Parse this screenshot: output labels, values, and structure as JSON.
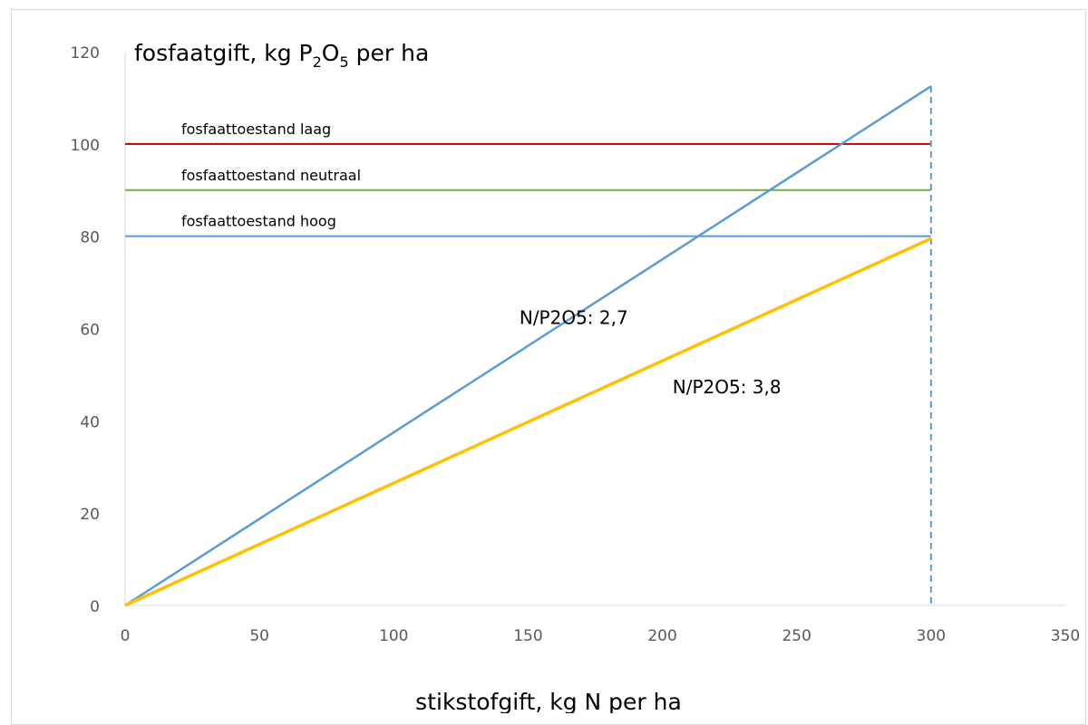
{
  "chart_data": {
    "type": "line",
    "title": "",
    "ylabel": {
      "main": "fosfaatgift, kg P",
      "sub1": "2",
      "mid": "O",
      "sub2": "5",
      "tail": " per ha"
    },
    "xlabel": "stikstofgift, kg N per ha",
    "xlim": [
      0,
      350
    ],
    "ylim": [
      0,
      120
    ],
    "xticks": [
      0,
      50,
      100,
      150,
      200,
      250,
      300,
      350
    ],
    "yticks": [
      0,
      20,
      40,
      60,
      80,
      100,
      120
    ],
    "grid": false,
    "series": [
      {
        "name": "N/P2O5: 2,7",
        "color": "#5b9bd5",
        "x": [
          0,
          300
        ],
        "y": [
          0,
          112.5
        ]
      },
      {
        "name": "N/P2O5: 3,8",
        "color": "#ffc000",
        "x": [
          0,
          300
        ],
        "y": [
          0,
          79.5
        ]
      }
    ],
    "hlines": [
      {
        "label": "fosfaattoestand laag",
        "y": 100,
        "color": "#c00000",
        "x": [
          0,
          300
        ]
      },
      {
        "label": "fosfaattoestand neutraal",
        "y": 90,
        "color": "#70ad47",
        "x": [
          0,
          300
        ]
      },
      {
        "label": "fosfaattoestand hoog",
        "y": 80,
        "color": "#5b9bd5",
        "x": [
          0,
          300
        ]
      }
    ],
    "vline": {
      "x": 300,
      "color": "#5b9bd5",
      "style": "dashed"
    },
    "annotations": [
      {
        "text": "N/P2O5: 2,7",
        "x": 167,
        "y": 61
      },
      {
        "text": "N/P2O5: 3,8",
        "x": 224,
        "y": 46
      }
    ]
  }
}
